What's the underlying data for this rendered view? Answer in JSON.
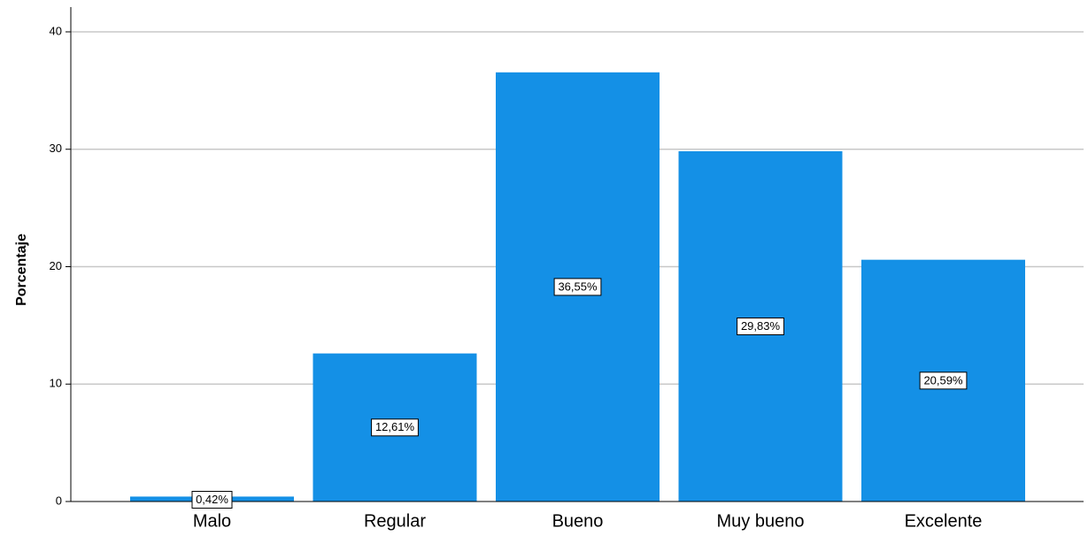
{
  "chart_data": {
    "type": "bar",
    "title": "",
    "xlabel": "",
    "ylabel": "Porcentaje",
    "categories": [
      "Malo",
      "Regular",
      "Bueno",
      "Muy bueno",
      "Excelente"
    ],
    "values": [
      0.42,
      12.61,
      36.55,
      29.83,
      20.59
    ],
    "data_labels": [
      "0,42%",
      "12,61%",
      "36,55%",
      "29,83%",
      "20,59%"
    ],
    "yticks": [
      0,
      10,
      20,
      30,
      40
    ],
    "ylim": [
      0,
      42
    ],
    "grid": true,
    "bar_color": "#1490E6",
    "grid_color": "#C8C8C8"
  }
}
